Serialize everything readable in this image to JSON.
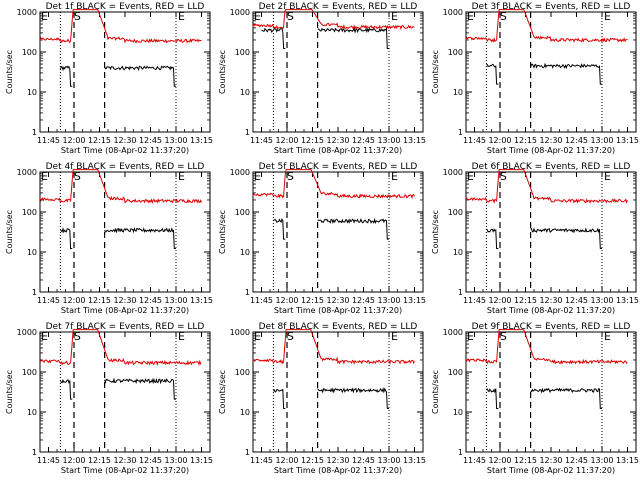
{
  "window": {
    "title": ""
  },
  "figure": {
    "type": "line",
    "x_tick_labels": [
      "11:45",
      "12:00",
      "12:15",
      "12:30",
      "12:45",
      "13:00",
      "13:15"
    ],
    "x_range_minutes": [
      -5,
      95
    ],
    "xlabel": "Start Time (08-Apr-02 11:37:20)",
    "ylabel": "Counts/sec",
    "y_scale": "log",
    "y_range": [
      1,
      1000
    ],
    "y_tick_labels": [
      "1",
      "10",
      "100",
      "1000"
    ],
    "colors": {
      "events": "#000000",
      "lld": "#e00000"
    },
    "marker_labels": {
      "start": "E",
      "shade_start": "S",
      "end": "E"
    },
    "lines_minutes": {
      "dotted": [
        7,
        75
      ],
      "dashed": [
        15,
        33
      ]
    }
  },
  "chart_data": [
    {
      "type": "line",
      "title": "Det 1f BLACK = Events, RED = LLD",
      "lld_level": 190,
      "events_level": 40,
      "events_ranges": [
        [
          7,
          14
        ],
        [
          33,
          75
        ]
      ],
      "xlabel": "Start Time (08-Apr-02 11:37:20)",
      "ylabel": "Counts/sec",
      "ylim": [
        1,
        1000
      ],
      "y_scale": "log"
    },
    {
      "type": "line",
      "title": "Det 2f BLACK = Events, RED = LLD",
      "lld_level": 420,
      "events_level": 350,
      "events_ranges": [
        [
          0,
          14
        ],
        [
          33,
          75
        ]
      ],
      "xlabel": "Start Time (08-Apr-02 11:37:20)",
      "ylabel": "Counts/sec",
      "ylim": [
        1,
        1000
      ],
      "y_scale": "log"
    },
    {
      "type": "line",
      "title": "Det 3f BLACK = Events, RED = LLD",
      "lld_level": 200,
      "events_level": 45,
      "events_ranges": [
        [
          7,
          14
        ],
        [
          33,
          75
        ]
      ],
      "xlabel": "Start Time (08-Apr-02 11:37:20)",
      "ylabel": "Counts/sec",
      "ylim": [
        1,
        1000
      ],
      "y_scale": "log"
    },
    {
      "type": "line",
      "title": "Det 4f BLACK = Events, RED = LLD",
      "lld_level": 190,
      "events_level": 35,
      "events_ranges": [
        [
          7,
          14
        ],
        [
          33,
          75
        ]
      ],
      "xlabel": "Start Time (08-Apr-02 11:37:20)",
      "ylabel": "Counts/sec",
      "ylim": [
        1,
        1000
      ],
      "y_scale": "log"
    },
    {
      "type": "line",
      "title": "Det 5f BLACK = Events, RED = LLD",
      "lld_level": 250,
      "events_level": 60,
      "events_ranges": [
        [
          7,
          14
        ],
        [
          33,
          75
        ]
      ],
      "xlabel": "Start Time (08-Apr-02 11:37:20)",
      "ylabel": "Counts/sec",
      "ylim": [
        1,
        1000
      ],
      "y_scale": "log"
    },
    {
      "type": "line",
      "title": "Det 6f BLACK = Events, RED = LLD",
      "lld_level": 190,
      "events_level": 35,
      "events_ranges": [
        [
          7,
          14
        ],
        [
          33,
          75
        ]
      ],
      "xlabel": "Start Time (08-Apr-02 11:37:20)",
      "ylabel": "Counts/sec",
      "ylim": [
        1,
        1000
      ],
      "y_scale": "log"
    },
    {
      "type": "line",
      "title": "Det 7f BLACK = Events, RED = LLD",
      "lld_level": 170,
      "events_level": 60,
      "events_ranges": [
        [
          7,
          14
        ],
        [
          33,
          75
        ]
      ],
      "xlabel": "Start Time (08-Apr-02 11:37:20)",
      "ylabel": "Counts/sec",
      "ylim": [
        1,
        1000
      ],
      "y_scale": "log"
    },
    {
      "type": "line",
      "title": "Det 8f BLACK = Events, RED = LLD",
      "lld_level": 180,
      "events_level": 35,
      "events_ranges": [
        [
          7,
          14
        ],
        [
          33,
          75
        ]
      ],
      "xlabel": "Start Time (08-Apr-02 11:37:20)",
      "ylabel": "Counts/sec",
      "ylim": [
        1,
        1000
      ],
      "y_scale": "log"
    },
    {
      "type": "line",
      "title": "Det 9f BLACK = Events, RED = LLD",
      "lld_level": 180,
      "events_level": 35,
      "events_ranges": [
        [
          7,
          14
        ],
        [
          33,
          75
        ]
      ],
      "xlabel": "Start Time (08-Apr-02 11:37:20)",
      "ylabel": "Counts/sec",
      "ylim": [
        1,
        1000
      ],
      "y_scale": "log"
    }
  ]
}
